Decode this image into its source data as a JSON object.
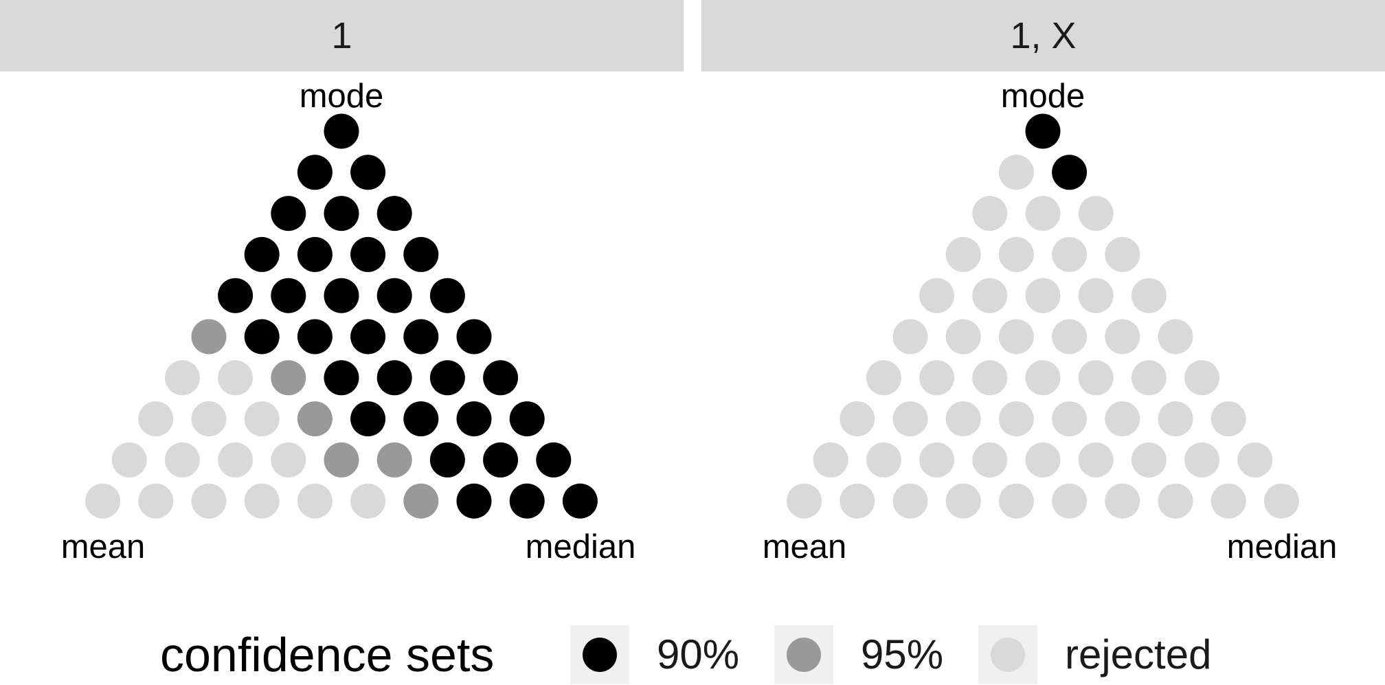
{
  "chart_data": [
    {
      "type": "scatter",
      "panel": "1",
      "vertex_labels": {
        "top": "mode",
        "bottom_left": "mean",
        "bottom_right": "median"
      },
      "grid": "triangular, 10 rows (row 1 = mode vertex, row 10 = base from mean to median)",
      "status_codes": {
        "B": "90%",
        "G": "95%",
        "L": "rejected"
      },
      "rows": [
        "B",
        "BB",
        "BBB",
        "BBBB",
        "BBBBB",
        "GBBBBB",
        "LLGBBBB",
        "LLLGBBBB",
        "LLLLGGBBB",
        "LLLLLLGBBB"
      ]
    },
    {
      "type": "scatter",
      "panel": "1, X",
      "vertex_labels": {
        "top": "mode",
        "bottom_left": "mean",
        "bottom_right": "median"
      },
      "grid": "triangular, 10 rows (row 1 = mode vertex, row 10 = base from mean to median)",
      "status_codes": {
        "B": "90%",
        "G": "95%",
        "L": "rejected"
      },
      "rows": [
        "B",
        "LB",
        "LLL",
        "LLLL",
        "LLLLL",
        "LLLLLL",
        "LLLLLLL",
        "LLLLLLLL",
        "LLLLLLLLL",
        "LLLLLLLLLL"
      ]
    }
  ],
  "panels": [
    {
      "strip": "1",
      "top": "mode",
      "left": "mean",
      "right": "median"
    },
    {
      "strip": "1, X",
      "top": "mode",
      "left": "mean",
      "right": "median"
    }
  ],
  "legend": {
    "title": "confidence sets",
    "items": [
      {
        "label": "90%",
        "color": "#000000"
      },
      {
        "label": "95%",
        "color": "#999999"
      },
      {
        "label": "rejected",
        "color": "#d9d9d9"
      }
    ]
  }
}
